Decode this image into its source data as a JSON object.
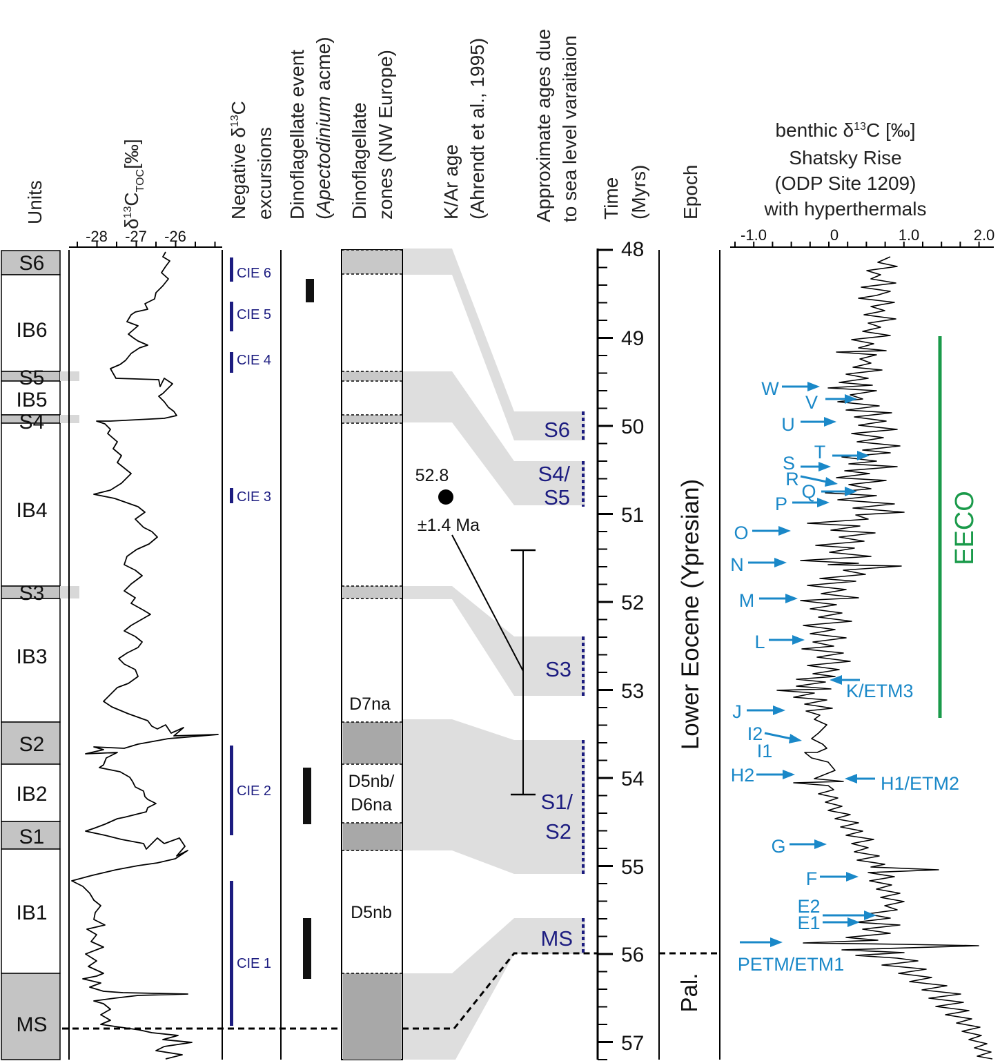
{
  "colors": {
    "navy": "#1c1c80",
    "blue": "#1a88c8",
    "green": "#1a9a4a",
    "unit_gray": "#c4c4c4",
    "dino_gray": "#c8c8c8",
    "dino_dark": "#a8a8a8",
    "band": "#dedede"
  },
  "headers": {
    "units": "Units",
    "toc_delta": "δ",
    "toc_13": "13",
    "toc_C": "C",
    "toc_sub": "TOC",
    "toc_unit": "[‰]",
    "neg_line1": "Negative δ",
    "neg_13": "13",
    "neg_C": "C",
    "neg_line2": "excursions",
    "dino_event_line1": "Dinoflagellate event",
    "dino_event_open": "(",
    "dino_event_italic": "Apectodinium",
    "dino_event_close": " acme)",
    "dino_zone_line1": "Dinoflagellate",
    "dino_zone_line2": "zones (NW Europe)",
    "kar_line1": "K/Ar age",
    "kar_line2": "(Ahrendt et al., 1995)",
    "approx_line1": "Approximate ages due",
    "approx_line2": "to sea level varaitaion",
    "time_line1": "Time",
    "time_line2": "(Myrs)",
    "epoch": "Epoch",
    "benthic_line1_a": "benthic δ",
    "benthic_13": "13",
    "benthic_line1_b": "C [‰]",
    "benthic_line2": "Shatsky Rise",
    "benthic_line3": "(ODP Site 1209)",
    "benthic_line4": "with hyperthermals"
  },
  "toc_axis": {
    "ticks": [
      "-28",
      "-27",
      "-26"
    ]
  },
  "benthic_axis": {
    "ticks": [
      "-1.0",
      "0",
      "1.0",
      "2.0"
    ]
  },
  "time_axis": {
    "ticks": [
      "48",
      "49",
      "50",
      "51",
      "52",
      "53",
      "54",
      "55",
      "56",
      "57"
    ]
  },
  "units": [
    {
      "name": "S6",
      "shade": true
    },
    {
      "name": "IB6",
      "shade": false
    },
    {
      "name": "S5",
      "shade": true
    },
    {
      "name": "IB5",
      "shade": false
    },
    {
      "name": "S4",
      "shade": true
    },
    {
      "name": "IB4",
      "shade": false
    },
    {
      "name": "S3",
      "shade": true
    },
    {
      "name": "IB3",
      "shade": false
    },
    {
      "name": "S2",
      "shade": true
    },
    {
      "name": "IB2",
      "shade": false
    },
    {
      "name": "S1",
      "shade": true
    },
    {
      "name": "IB1",
      "shade": false
    },
    {
      "name": "MS",
      "shade": true
    }
  ],
  "cie": [
    "CIE 6",
    "CIE 5",
    "CIE 4",
    "CIE 3",
    "CIE 2",
    "CIE 1"
  ],
  "dino_zones": [
    "D7na",
    "D5nb/",
    "D6na",
    "D5nb"
  ],
  "kar": {
    "value": "52.8",
    "error": "±1.4 Ma"
  },
  "sea_level": [
    "S6",
    "S4/",
    "S5",
    "S3",
    "S1/",
    "S2",
    "MS"
  ],
  "epochs": {
    "lower": "Lower Eocene (Ypresian)",
    "pal": "Pal."
  },
  "eeco": "EECO",
  "hyperthermals": [
    "W",
    "V",
    "U",
    "T",
    "S",
    "R",
    "Q",
    "P",
    "O",
    "N",
    "M",
    "L",
    "K/ETM3",
    "J",
    "I2",
    "I1",
    "H2",
    "H1/ETM2",
    "G",
    "F",
    "E2",
    "E1",
    "PETM/ETM1"
  ]
}
